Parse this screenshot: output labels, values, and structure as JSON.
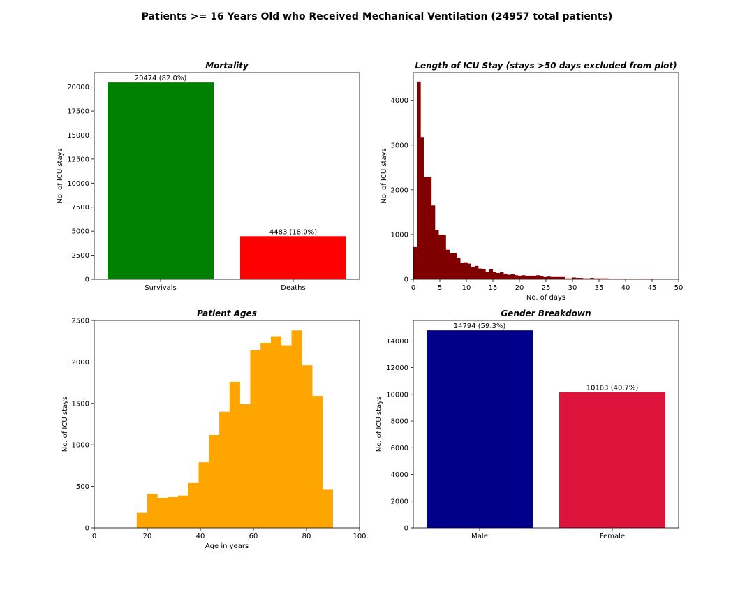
{
  "suptitle": "Patients >= 16 Years Old who Received Mechanical Ventilation (24957 total patients)",
  "chart_data": [
    {
      "id": "mortality",
      "type": "bar",
      "title": "Mortality",
      "xlabel": "",
      "ylabel": "No. of ICU stays",
      "categories": [
        "Survivals",
        "Deaths"
      ],
      "values": [
        20474,
        4483
      ],
      "bar_labels": [
        "20474 (82.0%)",
        "4483 (18.0%)"
      ],
      "colors": [
        "#008000",
        "#ff0000"
      ],
      "ylim": [
        0,
        21500
      ],
      "yticks": [
        0,
        2500,
        5000,
        7500,
        10000,
        12500,
        15000,
        17500,
        20000
      ],
      "grid": false
    },
    {
      "id": "los",
      "type": "bar",
      "subtype": "histogram",
      "title": "Length of ICU Stay (stays >50 days excluded from plot)",
      "xlabel": "No. of days",
      "ylabel": "No. of ICU stays",
      "xlim": [
        0,
        50
      ],
      "ylim": [
        0,
        4620
      ],
      "xticks": [
        0,
        5,
        10,
        15,
        20,
        25,
        30,
        35,
        40,
        45,
        50
      ],
      "yticks": [
        0,
        1000,
        2000,
        3000,
        4000
      ],
      "bin_edges_start": 0,
      "bin_width": 0.68,
      "values": [
        720,
        4420,
        3180,
        2290,
        2290,
        1650,
        1100,
        1000,
        990,
        660,
        580,
        580,
        480,
        370,
        380,
        350,
        270,
        300,
        240,
        230,
        170,
        220,
        170,
        140,
        160,
        120,
        100,
        110,
        90,
        80,
        90,
        70,
        80,
        70,
        90,
        70,
        50,
        60,
        50,
        50,
        50,
        50,
        20,
        20,
        40,
        30,
        30,
        20,
        20,
        30,
        20,
        20,
        20,
        20,
        15,
        15,
        15,
        15,
        15,
        15,
        10,
        10,
        10,
        15,
        15,
        15
      ],
      "color": "#800000",
      "grid": false
    },
    {
      "id": "ages",
      "type": "bar",
      "subtype": "histogram",
      "title": "Patient Ages",
      "xlabel": "Age in years",
      "ylabel": "No. of ICU stays",
      "xlim": [
        0,
        100
      ],
      "ylim": [
        0,
        2500
      ],
      "xticks": [
        0,
        20,
        40,
        60,
        80,
        100
      ],
      "yticks": [
        0,
        500,
        1000,
        1500,
        2000,
        2500
      ],
      "bin_edges_start": 16,
      "bin_width": 3.89,
      "values": [
        180,
        410,
        360,
        370,
        390,
        540,
        790,
        1120,
        1400,
        1760,
        1490,
        2140,
        2230,
        2310,
        2200,
        2380,
        1960,
        1590,
        460
      ],
      "color": "#ffa500",
      "grid": false
    },
    {
      "id": "gender",
      "type": "bar",
      "title": "Gender Breakdown",
      "xlabel": "",
      "ylabel": "No. of ICU stays",
      "categories": [
        "Male",
        "Female"
      ],
      "values": [
        14794,
        10163
      ],
      "bar_labels": [
        "14794 (59.3%)",
        "10163 (40.7%)"
      ],
      "colors": [
        "#00008b",
        "#dc143c"
      ],
      "ylim": [
        0,
        15533
      ],
      "yticks": [
        0,
        2000,
        4000,
        6000,
        8000,
        10000,
        12000,
        14000
      ],
      "grid": false
    }
  ]
}
